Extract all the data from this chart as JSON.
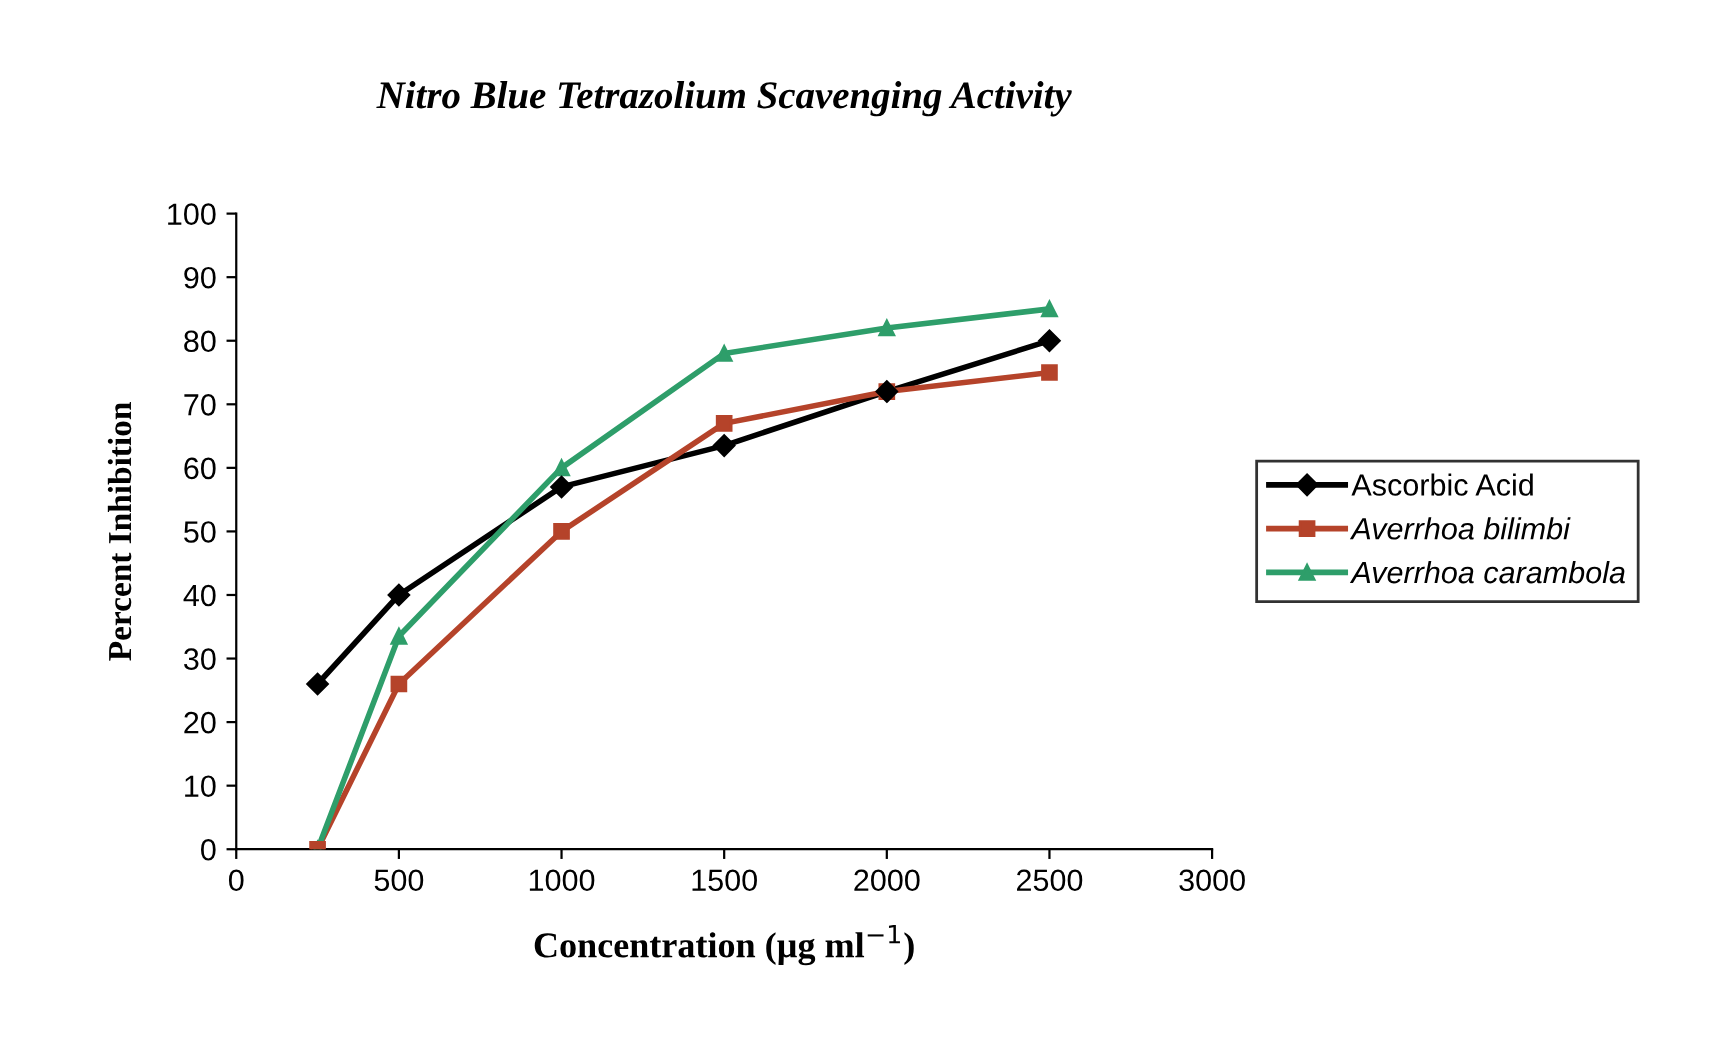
{
  "chart_data": {
    "type": "line",
    "title": "Nitro Blue Tetrazolium Scavenging Activity",
    "xlabel": "Concentration (µg ml$^{−1}$)",
    "ylabel": "Percent Inhibition",
    "x": [
      250,
      500,
      1000,
      1500,
      2000,
      2500
    ],
    "series": [
      {
        "name": "Ascorbic Acid",
        "color": "#000000",
        "marker": "diamond",
        "values": [
          26,
          40,
          57,
          63.5,
          72,
          80
        ]
      },
      {
        "name": "Averrhoa bilimbi",
        "color": "#b5432a",
        "marker": "square",
        "values": [
          0,
          26,
          50,
          67,
          72,
          75
        ]
      },
      {
        "name": "Averrhoa carambola",
        "color": "#2e9e6a",
        "marker": "triangle",
        "values": [
          0,
          33.5,
          60,
          78,
          82,
          85
        ]
      }
    ],
    "xlim": [
      0,
      3000
    ],
    "xticks": [
      0,
      500,
      1000,
      1500,
      2000,
      2500,
      3000
    ],
    "ylim": [
      0,
      100
    ],
    "yticks": [
      0,
      10,
      20,
      30,
      40,
      50,
      60,
      70,
      80,
      90,
      100
    ],
    "grid": false,
    "legend": "right",
    "line_style": "solid"
  }
}
